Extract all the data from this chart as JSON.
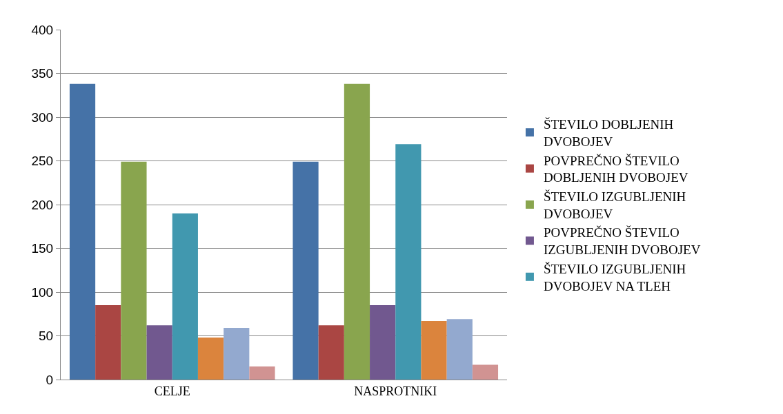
{
  "chart_data": {
    "type": "bar",
    "categories": [
      "CELJE",
      "NASPROTNIKI"
    ],
    "series": [
      {
        "name": "ŠTEVILO DOBLJENIH DVOBOJEV",
        "color": "#4572a7",
        "values": [
          338,
          249
        ]
      },
      {
        "name": "POVPREČNO ŠTEVILO DOBLJENIH DVOBOJEV",
        "color": "#aa4643",
        "values": [
          85,
          62
        ]
      },
      {
        "name": "ŠTEVILO IZGUBLJENIH DVOBOJEV",
        "color": "#89a54e",
        "values": [
          249,
          338
        ]
      },
      {
        "name": "POVPREČNO ŠTEVILO IZGUBLJENIH DVOBOJEV",
        "color": "#71588f",
        "values": [
          62,
          85
        ]
      },
      {
        "name": "ŠTEVILO IZGUBLJENIH DVOBOJEV NA TLEH",
        "color": "#4198af",
        "values": [
          190,
          269
        ]
      },
      {
        "color": "#db843d",
        "values": [
          48,
          67
        ]
      },
      {
        "color": "#93a9cf",
        "values": [
          59,
          69
        ]
      },
      {
        "color": "#d19392",
        "values": [
          15,
          17
        ]
      }
    ],
    "ylim": [
      0,
      400
    ],
    "yticks": [
      0,
      50,
      100,
      150,
      200,
      250,
      300,
      350,
      400
    ],
    "grid": "y",
    "legend": "right"
  }
}
